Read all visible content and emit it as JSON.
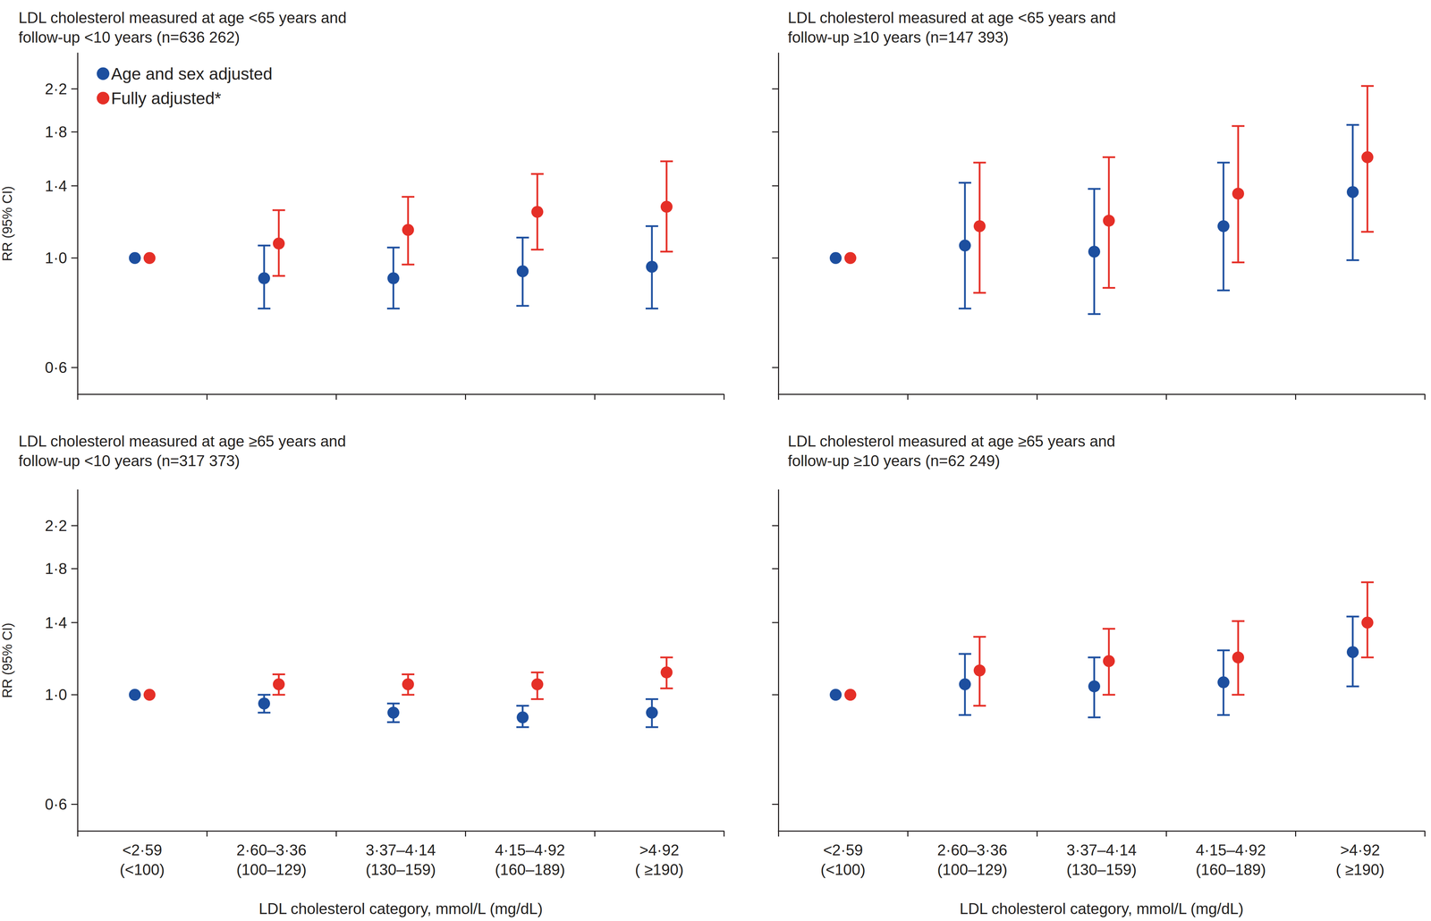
{
  "chart_data": [
    {
      "type": "scatter",
      "title": "LDL cholesterol measured at age <65 years and\nfollow-up <10 years (n=636 262)",
      "categories": [
        "<2·59\n(<100)",
        "2·60–3·36\n(100–129)",
        "3·37–4·14\n(130–159)",
        "4·15–4·92\n(160–189)",
        ">4·92\n( ≥190)"
      ],
      "y_label": "RR (95% CI)",
      "log": "y",
      "ylim": [
        0.53,
        2.6
      ],
      "yticks": [
        {
          "value": 0.6,
          "label": "0·6"
        },
        {
          "value": 1.0,
          "label": "1·0"
        },
        {
          "value": 1.4,
          "label": "1·4"
        },
        {
          "value": 1.8,
          "label": "1·8"
        },
        {
          "value": 2.2,
          "label": "2·2"
        }
      ],
      "tick_labels": "y",
      "legend": "upper left",
      "marker": "circle",
      "series": [
        {
          "name": "Age and sex adjusted",
          "color": "#1d4f9f",
          "values": [
            1.0,
            0.91,
            0.91,
            0.94,
            0.96
          ],
          "ci_lower": [
            null,
            0.79,
            0.79,
            0.8,
            0.79
          ],
          "ci_upper": [
            null,
            1.06,
            1.05,
            1.1,
            1.16
          ]
        },
        {
          "name": "Fully adjusted*",
          "color": "#e52f27",
          "values": [
            1.0,
            1.07,
            1.14,
            1.24,
            1.27
          ],
          "ci_lower": [
            null,
            0.92,
            0.97,
            1.04,
            1.03
          ],
          "ci_upper": [
            null,
            1.25,
            1.33,
            1.48,
            1.57
          ]
        }
      ]
    },
    {
      "type": "scatter",
      "title": "LDL cholesterol measured at age <65 years and\nfollow-up ≥10 years (n=147 393)",
      "categories": [
        "<2·59\n(<100)",
        "2·60–3·36\n(100–129)",
        "3·37–4·14\n(130–159)",
        "4·15–4·92\n(160–189)",
        ">4·92\n( ≥190)"
      ],
      "log": "y",
      "ylim": [
        0.53,
        2.6
      ],
      "yticks": [
        {
          "value": 0.6,
          "label": "0·6"
        },
        {
          "value": 1.0,
          "label": "1·0"
        },
        {
          "value": 1.4,
          "label": "1·4"
        },
        {
          "value": 1.8,
          "label": "1·8"
        },
        {
          "value": 2.2,
          "label": "2·2"
        }
      ],
      "tick_labels": false,
      "marker": "circle",
      "series": [
        {
          "name": "Age and sex adjusted",
          "color": "#1d4f9f",
          "values": [
            1.0,
            1.06,
            1.03,
            1.16,
            1.36
          ],
          "ci_lower": [
            null,
            0.79,
            0.77,
            0.86,
            0.99
          ],
          "ci_upper": [
            null,
            1.42,
            1.38,
            1.56,
            1.86
          ]
        },
        {
          "name": "Fully adjusted*",
          "color": "#e52f27",
          "values": [
            1.0,
            1.16,
            1.19,
            1.35,
            1.6
          ],
          "ci_lower": [
            null,
            0.85,
            0.87,
            0.98,
            1.13
          ],
          "ci_upper": [
            null,
            1.56,
            1.6,
            1.85,
            2.23
          ]
        }
      ]
    },
    {
      "type": "scatter",
      "title": "LDL cholesterol measured at age ≥65 years and\nfollow-up <10 years (n=317 373)",
      "categories": [
        "<2·59\n(<100)",
        "2·60–3·36\n(100–129)",
        "3·37–4·14\n(130–159)",
        "4·15–4·92\n(160–189)",
        ">4·92\n( ≥190)"
      ],
      "x_label": "LDL cholesterol category, mmol/L (mg/dL)",
      "y_label": "RR (95% CI)",
      "log": "y",
      "ylim": [
        0.53,
        2.6
      ],
      "yticks": [
        {
          "value": 0.6,
          "label": "0·6"
        },
        {
          "value": 1.0,
          "label": "1·0"
        },
        {
          "value": 1.4,
          "label": "1·4"
        },
        {
          "value": 1.8,
          "label": "1·8"
        },
        {
          "value": 2.2,
          "label": "2·2"
        }
      ],
      "tick_labels": true,
      "marker": "circle",
      "series": [
        {
          "name": "Age and sex adjusted",
          "color": "#1d4f9f",
          "values": [
            1.0,
            0.96,
            0.92,
            0.9,
            0.92
          ],
          "ci_lower": [
            null,
            0.92,
            0.88,
            0.86,
            0.86
          ],
          "ci_upper": [
            null,
            1.0,
            0.96,
            0.95,
            0.98
          ]
        },
        {
          "name": "Fully adjusted*",
          "color": "#e52f27",
          "values": [
            1.0,
            1.05,
            1.05,
            1.05,
            1.11
          ],
          "ci_lower": [
            null,
            1.0,
            1.0,
            0.98,
            1.03
          ],
          "ci_upper": [
            null,
            1.1,
            1.1,
            1.11,
            1.19
          ]
        }
      ]
    },
    {
      "type": "scatter",
      "title": "LDL cholesterol measured at age ≥65 years and\nfollow-up ≥10 years (n=62 249)",
      "categories": [
        "<2·59\n(<100)",
        "2·60–3·36\n(100–129)",
        "3·37–4·14\n(130–159)",
        "4·15–4·92\n(160–189)",
        ">4·92\n( ≥190)"
      ],
      "x_label": "LDL cholesterol category, mmol/L (mg/dL)",
      "log": "y",
      "ylim": [
        0.53,
        2.6
      ],
      "yticks": [
        {
          "value": 0.6,
          "label": "0·6"
        },
        {
          "value": 1.0,
          "label": "1·0"
        },
        {
          "value": 1.4,
          "label": "1·4"
        },
        {
          "value": 1.8,
          "label": "1·8"
        },
        {
          "value": 2.2,
          "label": "2·2"
        }
      ],
      "tick_labels": "x",
      "marker": "circle",
      "series": [
        {
          "name": "Age and sex adjusted",
          "color": "#1d4f9f",
          "values": [
            1.0,
            1.05,
            1.04,
            1.06,
            1.22
          ],
          "ci_lower": [
            null,
            0.91,
            0.9,
            0.91,
            1.04
          ],
          "ci_upper": [
            null,
            1.21,
            1.19,
            1.23,
            1.44
          ]
        },
        {
          "name": "Fully adjusted*",
          "color": "#e52f27",
          "values": [
            1.0,
            1.12,
            1.17,
            1.19,
            1.4
          ],
          "ci_lower": [
            null,
            0.95,
            1.0,
            1.0,
            1.19
          ],
          "ci_upper": [
            null,
            1.31,
            1.36,
            1.41,
            1.69
          ]
        }
      ]
    }
  ]
}
